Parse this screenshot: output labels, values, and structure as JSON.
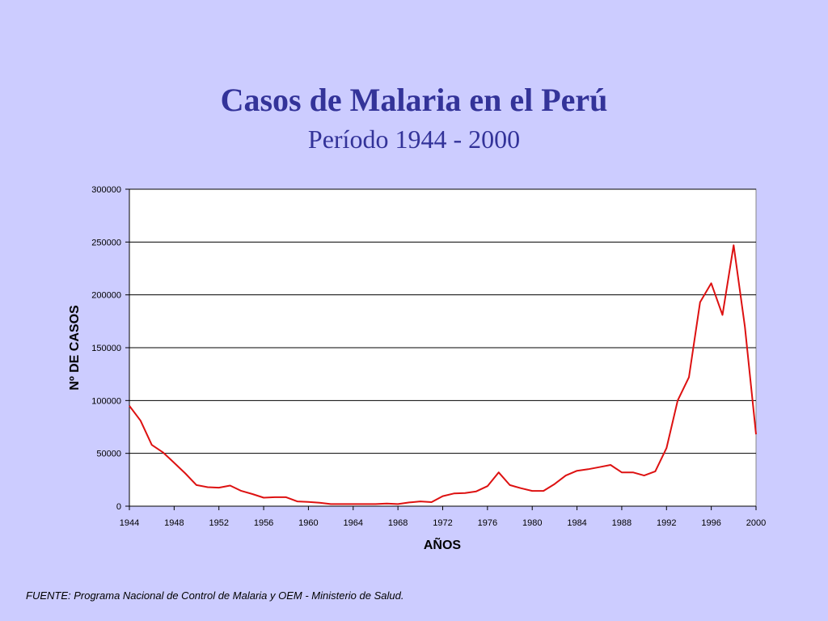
{
  "slide": {
    "title": "Casos de Malaria en el Perú",
    "subtitle": "Período 1944 - 2000",
    "source": "FUENTE: Programa Nacional de Control de Malaria y OEM - Ministerio de Salud."
  },
  "colors": {
    "background": "#ccccff",
    "title": "#333399",
    "plot_area": "#ffffff",
    "line": "#dd1111",
    "grid": "#000000"
  },
  "chart_data": {
    "type": "line",
    "title": "",
    "xlabel": "AÑOS",
    "ylabel": "Nº DE CASOS",
    "xlim": [
      1944,
      2000
    ],
    "ylim": [
      0,
      300000
    ],
    "grid": true,
    "legend": "none",
    "x_ticks": [
      "1944",
      "1948",
      "1952",
      "1956",
      "1960",
      "1964",
      "1968",
      "1972",
      "1976",
      "1980",
      "1984",
      "1988",
      "1992",
      "1996",
      "2000"
    ],
    "y_ticks": [
      "0",
      "50000",
      "100000",
      "150000",
      "200000",
      "250000",
      "300000"
    ],
    "series": [
      {
        "x": [
          1944,
          1945,
          1946,
          1947,
          1948,
          1949,
          1950,
          1951,
          1952,
          1953,
          1954,
          1955,
          1956,
          1957,
          1958,
          1959,
          1960,
          1961,
          1962,
          1963,
          1964,
          1965,
          1966,
          1967,
          1968,
          1969,
          1970,
          1971,
          1972,
          1973,
          1974,
          1975,
          1976,
          1977,
          1978,
          1979,
          1980,
          1981,
          1982,
          1983,
          1984,
          1985,
          1986,
          1987,
          1988,
          1989,
          1990,
          1991,
          1992,
          1993,
          1994,
          1995,
          1996,
          1997,
          1998,
          1999,
          2000
        ],
        "values": [
          95000,
          81000,
          58000,
          51000,
          41000,
          31000,
          20000,
          18000,
          17500,
          19500,
          14500,
          11500,
          8000,
          8500,
          8500,
          4500,
          4000,
          3200,
          2000,
          2000,
          2000,
          2000,
          2000,
          2500,
          2000,
          3500,
          4500,
          3800,
          9500,
          12000,
          12500,
          14000,
          19000,
          32000,
          20000,
          17000,
          14500,
          14500,
          21000,
          29000,
          33500,
          35000,
          37000,
          39000,
          32000,
          32000,
          29000,
          33000,
          55000,
          100000,
          122000,
          193000,
          211000,
          181000,
          247000,
          170000,
          68000
        ]
      }
    ]
  }
}
